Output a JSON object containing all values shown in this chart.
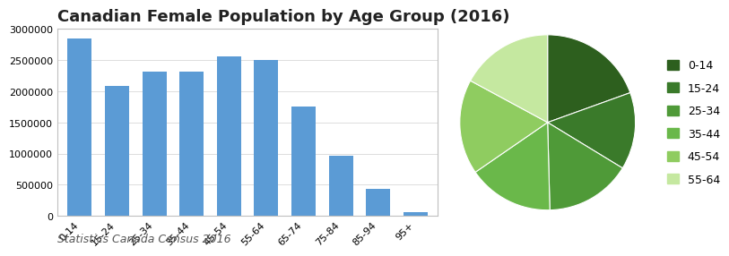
{
  "title": "Canadian Female Population by Age Group (2016)",
  "subtitle": "Statistics Canada Census 2016",
  "categories": [
    "0-14",
    "15-24",
    "25-34",
    "35-44",
    "45-54",
    "55-64",
    "65-74",
    "75-84",
    "85-94",
    "95+"
  ],
  "values": [
    2850000,
    2080000,
    2320000,
    2310000,
    2560000,
    2500000,
    1760000,
    960000,
    440000,
    65000
  ],
  "bar_color": "#5b9bd5",
  "ylim": [
    0,
    3000000
  ],
  "yticks": [
    0,
    500000,
    1000000,
    1500000,
    2000000,
    2500000,
    3000000
  ],
  "pie_labels": [
    "0-14",
    "15-24",
    "25-34",
    "35-44",
    "45-54",
    "55-64"
  ],
  "pie_values": [
    2850000,
    2080000,
    2320000,
    2310000,
    2560000,
    2500000
  ],
  "pie_colors": [
    "#2d5f1e",
    "#3a7a2a",
    "#4f9a38",
    "#6ab84a",
    "#8fcc60",
    "#c5e8a0"
  ],
  "legend_colors": [
    "#2d5f1e",
    "#3a7a2a",
    "#4f9a38",
    "#6ab84a",
    "#8fcc60",
    "#c5e8a0"
  ],
  "legend_labels": [
    "0-14",
    "15-24",
    "25-34",
    "35-44",
    "45-54",
    "55-64"
  ],
  "background_color": "#ffffff",
  "title_fontsize": 13,
  "subtitle_fontsize": 9,
  "tick_fontsize": 8,
  "border_color": "#bfbfbf"
}
